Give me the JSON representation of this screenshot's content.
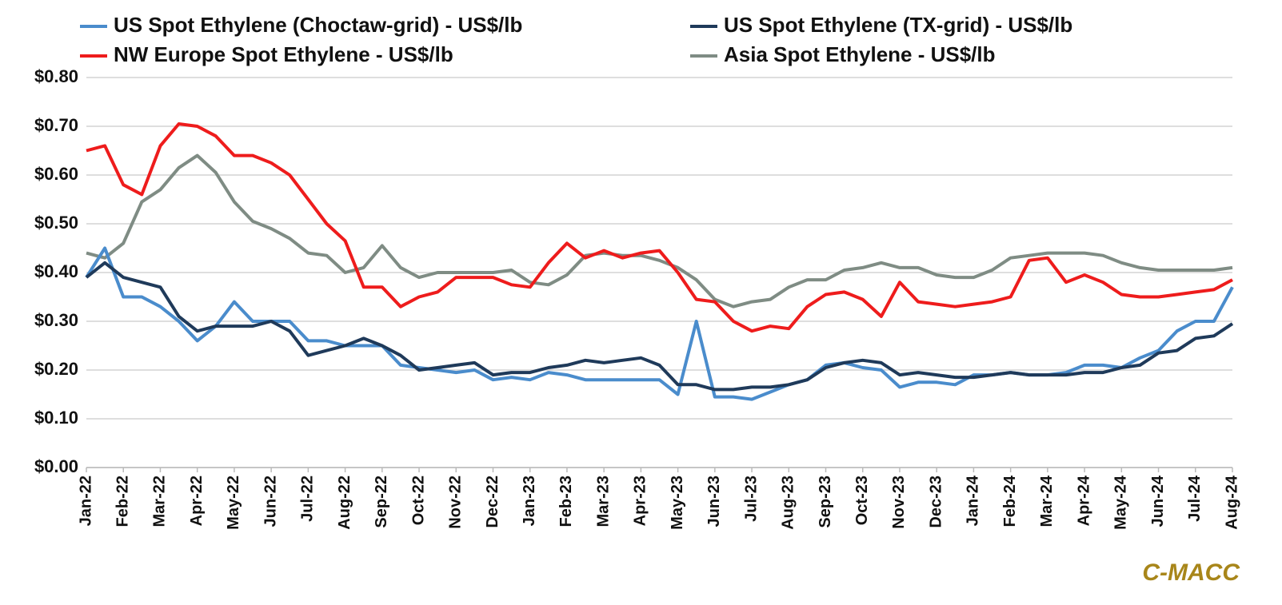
{
  "chart_data": {
    "type": "line",
    "categories": [
      "Jan-22",
      null,
      "Feb-22",
      null,
      "Mar-22",
      null,
      "Apr-22",
      null,
      "May-22",
      null,
      "Jun-22",
      null,
      "Jul-22",
      null,
      "Aug-22",
      null,
      "Sep-22",
      null,
      "Oct-22",
      null,
      "Nov-22",
      null,
      "Dec-22",
      null,
      "Jan-23",
      null,
      "Feb-23",
      null,
      "Mar-23",
      null,
      "Apr-23",
      null,
      "May-23",
      null,
      "Jun-23",
      null,
      "Jul-23",
      null,
      "Aug-23",
      null,
      "Sep-23",
      null,
      "Oct-23",
      null,
      "Nov-23",
      null,
      "Dec-23",
      null,
      "Jan-24",
      null,
      "Feb-24",
      null,
      "Mar-24",
      null,
      "Apr-24",
      null,
      "May-24",
      null,
      "Jun-24",
      null,
      "Jul-24",
      null,
      "Aug-24"
    ],
    "series": [
      {
        "name": "US Spot Ethylene (Choctaw-grid) - US$/lb",
        "color": "#4a8ccc",
        "values": [
          0.39,
          0.45,
          0.35,
          0.35,
          0.33,
          0.3,
          0.26,
          0.29,
          0.34,
          0.3,
          0.3,
          0.3,
          0.26,
          0.26,
          0.25,
          0.25,
          0.25,
          0.21,
          0.205,
          0.2,
          0.195,
          0.2,
          0.18,
          0.185,
          0.18,
          0.195,
          0.19,
          0.18,
          0.18,
          0.18,
          0.18,
          0.18,
          0.15,
          0.3,
          0.145,
          0.145,
          0.14,
          0.155,
          0.17,
          0.18,
          0.21,
          0.215,
          0.205,
          0.2,
          0.165,
          0.175,
          0.175,
          0.17,
          0.19,
          0.19,
          0.195,
          0.19,
          0.19,
          0.195,
          0.21,
          0.21,
          0.205,
          0.225,
          0.24,
          0.28,
          0.3,
          0.3,
          0.37
        ]
      },
      {
        "name": "US Spot Ethylene (TX-grid) - US$/lb",
        "color": "#1f3a5a",
        "values": [
          0.39,
          0.42,
          0.39,
          0.38,
          0.37,
          0.31,
          0.28,
          0.29,
          0.29,
          0.29,
          0.3,
          0.28,
          0.23,
          0.24,
          0.25,
          0.265,
          0.25,
          0.23,
          0.2,
          0.205,
          0.21,
          0.215,
          0.19,
          0.195,
          0.195,
          0.205,
          0.21,
          0.22,
          0.215,
          0.22,
          0.225,
          0.21,
          0.17,
          0.17,
          0.16,
          0.16,
          0.165,
          0.165,
          0.17,
          0.18,
          0.205,
          0.215,
          0.22,
          0.215,
          0.19,
          0.195,
          0.19,
          0.185,
          0.185,
          0.19,
          0.195,
          0.19,
          0.19,
          0.19,
          0.195,
          0.195,
          0.205,
          0.21,
          0.235,
          0.24,
          0.265,
          0.27,
          0.295
        ]
      },
      {
        "name": "NW Europe Spot Ethylene - US$/lb",
        "color": "#ee1c1c",
        "values": [
          0.65,
          0.66,
          0.58,
          0.56,
          0.66,
          0.705,
          0.7,
          0.68,
          0.64,
          0.64,
          0.625,
          0.6,
          0.55,
          0.5,
          0.465,
          0.37,
          0.37,
          0.33,
          0.35,
          0.36,
          0.39,
          0.39,
          0.39,
          0.375,
          0.37,
          0.42,
          0.46,
          0.43,
          0.445,
          0.43,
          0.44,
          0.445,
          0.4,
          0.345,
          0.34,
          0.3,
          0.28,
          0.29,
          0.285,
          0.33,
          0.355,
          0.36,
          0.345,
          0.31,
          0.38,
          0.34,
          0.335,
          0.33,
          0.335,
          0.34,
          0.35,
          0.425,
          0.43,
          0.38,
          0.395,
          0.38,
          0.355,
          0.35,
          0.35,
          0.355,
          0.36,
          0.365,
          0.385
        ]
      },
      {
        "name": "Asia Spot Ethylene - US$/lb",
        "color": "#7f8c84",
        "values": [
          0.44,
          0.43,
          0.46,
          0.545,
          0.57,
          0.615,
          0.64,
          0.605,
          0.545,
          0.505,
          0.49,
          0.47,
          0.44,
          0.435,
          0.4,
          0.41,
          0.455,
          0.41,
          0.39,
          0.4,
          0.4,
          0.4,
          0.4,
          0.405,
          0.38,
          0.375,
          0.395,
          0.435,
          0.44,
          0.435,
          0.435,
          0.425,
          0.41,
          0.385,
          0.345,
          0.33,
          0.34,
          0.345,
          0.37,
          0.385,
          0.385,
          0.405,
          0.41,
          0.42,
          0.41,
          0.41,
          0.395,
          0.39,
          0.39,
          0.405,
          0.43,
          0.435,
          0.44,
          0.44,
          0.44,
          0.435,
          0.42,
          0.41,
          0.405,
          0.405,
          0.405,
          0.405,
          0.41
        ]
      }
    ],
    "ylim": [
      0,
      0.8
    ],
    "yticks": [
      {
        "value": 0,
        "label": "$0.00"
      },
      {
        "value": 0.1,
        "label": "$0.10"
      },
      {
        "value": 0.2,
        "label": "$0.20"
      },
      {
        "value": 0.3,
        "label": "$0.30"
      },
      {
        "value": 0.4,
        "label": "$0.40"
      },
      {
        "value": 0.5,
        "label": "$0.50"
      },
      {
        "value": 0.6,
        "label": "$0.60"
      },
      {
        "value": 0.7,
        "label": "$0.70"
      },
      {
        "value": 0.8,
        "label": "$0.80"
      }
    ],
    "grid": true,
    "legend": "top",
    "source": "C-MACC"
  }
}
